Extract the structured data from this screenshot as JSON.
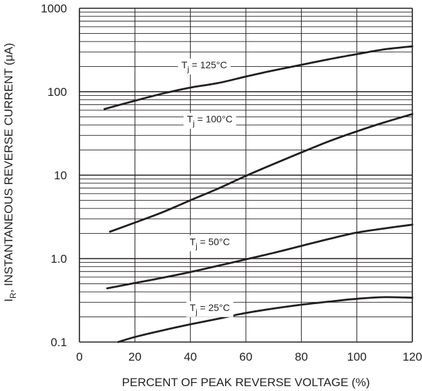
{
  "chart_data": {
    "type": "line",
    "title": "",
    "xlabel": "PERCENT OF PEAK REVERSE VOLTAGE (%)",
    "ylabel": {
      "symbol": "I",
      "subscript": "R",
      "text": ", INSTANTANEOUS REVERSE CURRENT (μA)"
    },
    "xlim": [
      0,
      120
    ],
    "ylim": [
      0.1,
      1000
    ],
    "yscale": "log",
    "grid": true,
    "x_ticks": [
      0,
      20,
      40,
      60,
      80,
      100,
      120
    ],
    "x_tick_labels": [
      "0",
      "20",
      "40",
      "60",
      "80",
      "100",
      "120"
    ],
    "y_ticks": [
      0.1,
      1,
      10,
      100,
      1000
    ],
    "y_tick_labels": [
      "0.1",
      "1.0",
      "10",
      "100",
      "1000"
    ],
    "line_color": "#231f20",
    "series": [
      {
        "label_prefix": "T",
        "label_sub": "j",
        "label_suffix": " = 125°C",
        "label_at": [
          45,
          210
        ],
        "x": [
          9,
          20,
          30,
          40,
          50,
          60,
          70,
          80,
          90,
          100,
          110,
          120
        ],
        "y": [
          62,
          78,
          95,
          112,
          127,
          152,
          180,
          210,
          245,
          282,
          322,
          350
        ]
      },
      {
        "label_prefix": "T",
        "label_sub": "j",
        "label_suffix": " = 100°C",
        "label_at": [
          47,
          47
        ],
        "x": [
          11,
          20,
          30,
          40,
          50,
          60,
          70,
          80,
          90,
          100,
          110,
          120
        ],
        "y": [
          2.1,
          2.7,
          3.6,
          5.0,
          6.9,
          9.8,
          13.6,
          18.7,
          25.5,
          33.5,
          43,
          54
        ]
      },
      {
        "label_prefix": "T",
        "label_sub": "j",
        "label_suffix": " = 50°C",
        "label_at": [
          47,
          1.6
        ],
        "x": [
          10,
          20,
          30,
          40,
          50,
          60,
          70,
          80,
          90,
          100,
          110,
          120
        ],
        "y": [
          0.44,
          0.51,
          0.59,
          0.69,
          0.82,
          0.98,
          1.17,
          1.42,
          1.72,
          2.05,
          2.3,
          2.55
        ]
      },
      {
        "label_prefix": "T",
        "label_sub": "j",
        "label_suffix": " = 25°C",
        "label_at": [
          47,
          0.26
        ],
        "x": [
          14,
          20,
          30,
          40,
          50,
          60,
          70,
          80,
          90,
          100,
          110,
          120
        ],
        "y": [
          0.1,
          0.115,
          0.138,
          0.163,
          0.19,
          0.223,
          0.252,
          0.28,
          0.305,
          0.33,
          0.345,
          0.34
        ]
      }
    ]
  }
}
